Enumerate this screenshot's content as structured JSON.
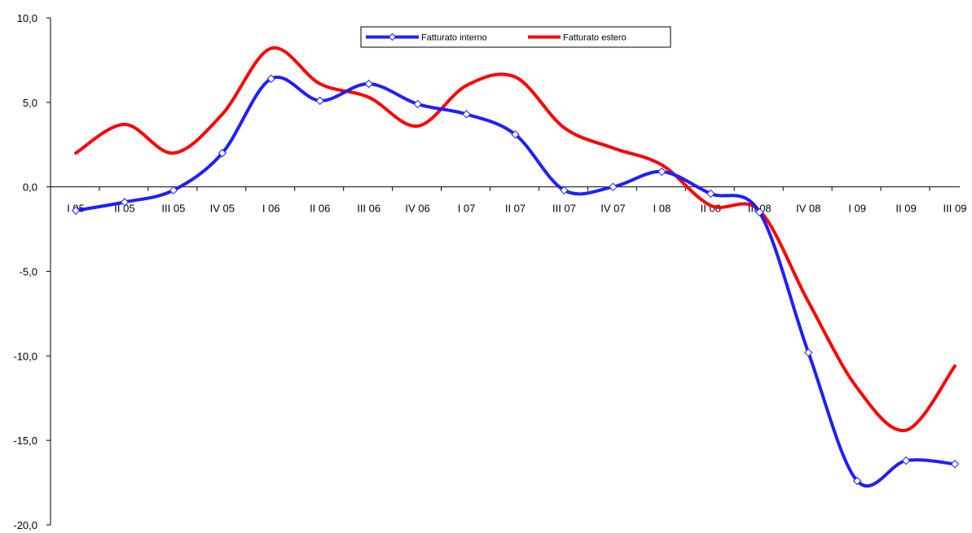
{
  "chart_data": {
    "type": "line",
    "categories": [
      "I 05",
      "II 05",
      "III 05",
      "IV 05",
      "I 06",
      "II 06",
      "III 06",
      "IV 06",
      "I 07",
      "II 07",
      "III 07",
      "IV 07",
      "I 08",
      "II 08",
      "III 08",
      "IV 08",
      "I 09",
      "II 09",
      "III 09"
    ],
    "series": [
      {
        "name": "Fatturato interno",
        "color": "#1f1fff",
        "markers": true,
        "values": [
          -1.4,
          -0.9,
          -0.2,
          2.0,
          6.4,
          5.1,
          6.1,
          4.9,
          4.3,
          3.1,
          -0.2,
          0.0,
          0.9,
          -0.4,
          -1.5,
          -9.8,
          -17.4,
          -16.2,
          -16.4
        ]
      },
      {
        "name": "Fatturato estero",
        "color": "#ff0000",
        "markers": false,
        "values": [
          2.0,
          3.7,
          2.0,
          4.3,
          8.2,
          6.1,
          5.3,
          3.6,
          6.0,
          6.5,
          3.5,
          2.3,
          1.3,
          -1.1,
          -1.4,
          -6.8,
          -11.9,
          -14.4,
          -10.6
        ]
      }
    ],
    "yticks": [
      "10,0",
      "5,0",
      "0,0",
      "-5,0",
      "-10,0",
      "-15,0",
      "-20,0"
    ],
    "ylim": [
      -20,
      10
    ],
    "legend": "top-center",
    "grid": false
  }
}
